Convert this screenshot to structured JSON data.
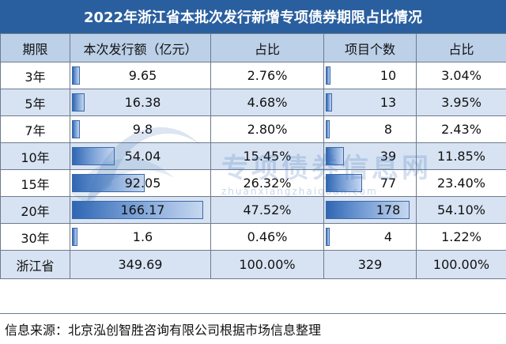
{
  "title": "2022年浙江省本批次发行新增专项债券期限占比情况",
  "headers": [
    "期限",
    "本次发行额（亿元）",
    "占比",
    "项目个数",
    "占比"
  ],
  "rows": [
    {
      "term": "3年",
      "amount": "9.65",
      "amount_pct": "2.76%",
      "count": "10",
      "count_pct": "3.04%",
      "amount_share": 0.0276,
      "count_share": 0.0304
    },
    {
      "term": "5年",
      "amount": "16.38",
      "amount_pct": "4.68%",
      "count": "13",
      "count_pct": "3.95%",
      "amount_share": 0.0468,
      "count_share": 0.0395
    },
    {
      "term": "7年",
      "amount": "9.8",
      "amount_pct": "2.80%",
      "count": "8",
      "count_pct": "2.43%",
      "amount_share": 0.028,
      "count_share": 0.0243
    },
    {
      "term": "10年",
      "amount": "54.04",
      "amount_pct": "15.45%",
      "count": "39",
      "count_pct": "11.85%",
      "amount_share": 0.1545,
      "count_share": 0.1185
    },
    {
      "term": "15年",
      "amount": "92.05",
      "amount_pct": "26.32%",
      "count": "77",
      "count_pct": "23.40%",
      "amount_share": 0.2632,
      "count_share": 0.234
    },
    {
      "term": "20年",
      "amount": "166.17",
      "amount_pct": "47.52%",
      "count": "178",
      "count_pct": "54.10%",
      "amount_share": 0.4752,
      "count_share": 0.541
    },
    {
      "term": "30年",
      "amount": "1.6",
      "amount_pct": "0.46%",
      "count": "4",
      "count_pct": "1.22%",
      "amount_share": 0.0046,
      "count_share": 0.0122
    }
  ],
  "total": {
    "term": "浙江省",
    "amount": "349.69",
    "amount_pct": "100.00%",
    "count": "329",
    "count_pct": "100.00%"
  },
  "source_note": "信息来源：北京泓创智胜咨询有限公司根据市场信息整理",
  "watermark": {
    "text": "专项债券信息网",
    "sub": "zhuanxiangzhaiquan.com"
  },
  "colors": {
    "title_bg": "#2a5f9f",
    "header_bg": "#bcd0e8",
    "band_bg": "#d7e3f2",
    "bar": "#2f66b3"
  }
}
